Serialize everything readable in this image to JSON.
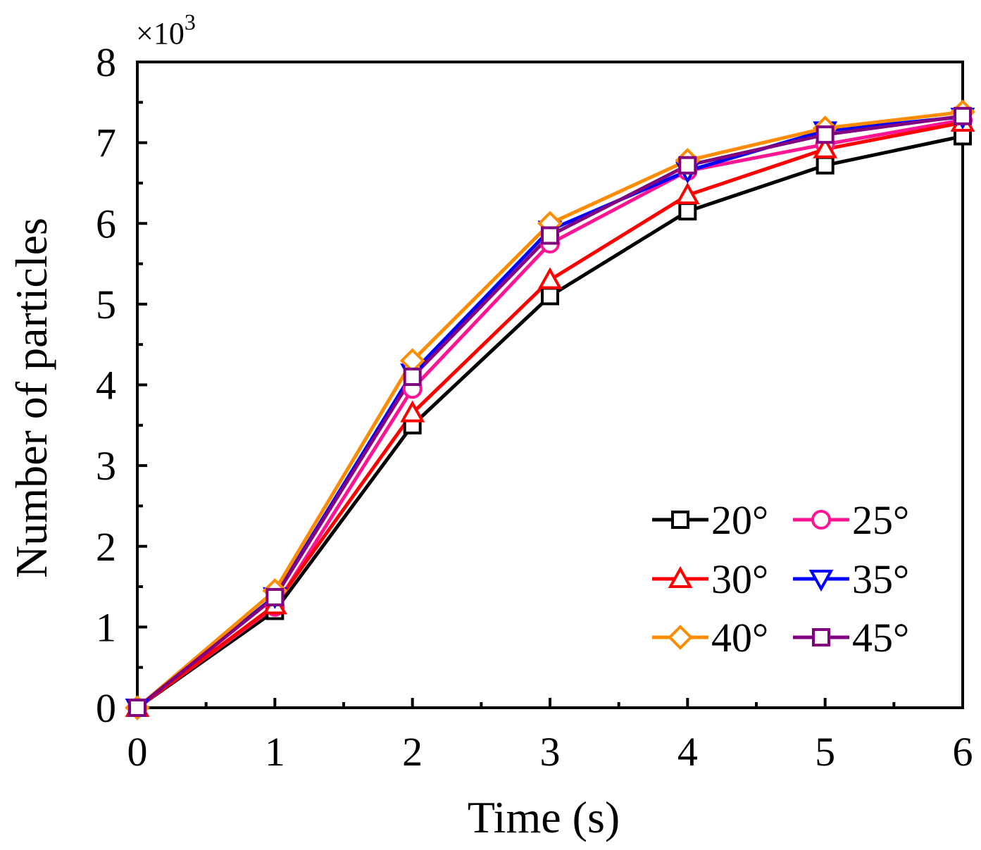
{
  "chart_data": {
    "type": "line",
    "title": "",
    "xlabel": "Time (s)",
    "ylabel": "Number of particles",
    "y_multiplier": "×10",
    "y_multiplier_exp": "3",
    "xlim": [
      0,
      6
    ],
    "ylim": [
      0,
      8
    ],
    "x_ticks": [
      "0",
      "1",
      "2",
      "3",
      "4",
      "5",
      "6"
    ],
    "y_ticks": [
      "0",
      "1",
      "2",
      "3",
      "4",
      "5",
      "6",
      "7",
      "8"
    ],
    "legend_position": "bottom-right",
    "x": [
      0,
      1,
      2,
      3,
      4,
      5,
      6
    ],
    "series": [
      {
        "name": "20°",
        "color": "#000000",
        "marker": "square",
        "values": [
          0,
          1.2,
          3.5,
          5.1,
          6.15,
          6.72,
          7.08
        ]
      },
      {
        "name": "25°",
        "color": "#FF1493",
        "marker": "circle",
        "values": [
          0,
          1.25,
          3.95,
          5.75,
          6.65,
          6.98,
          7.28
        ]
      },
      {
        "name": "30°",
        "color": "#FF0000",
        "marker": "triangle-up",
        "values": [
          0,
          1.27,
          3.65,
          5.3,
          6.35,
          6.92,
          7.25
        ]
      },
      {
        "name": "35°",
        "color": "#0000FF",
        "marker": "triangle-down",
        "values": [
          0,
          1.38,
          4.15,
          5.92,
          6.65,
          7.15,
          7.32
        ]
      },
      {
        "name": "40°",
        "color": "#FF8C00",
        "marker": "diamond",
        "values": [
          0,
          1.45,
          4.3,
          6.0,
          6.78,
          7.18,
          7.38
        ]
      },
      {
        "name": "45°",
        "color": "#800080",
        "marker": "square",
        "values": [
          0,
          1.37,
          4.1,
          5.85,
          6.72,
          7.1,
          7.33
        ]
      }
    ]
  }
}
